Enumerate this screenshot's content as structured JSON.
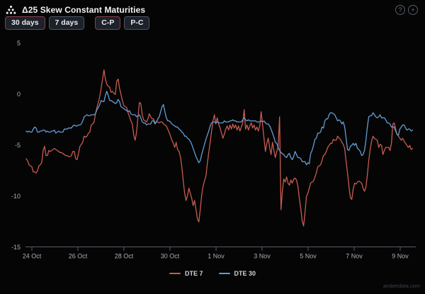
{
  "header": {
    "title": "Δ25 Skew Constant Maturities",
    "help_icon": "?",
    "add_icon": "+"
  },
  "toolbar": {
    "selected_border_color": "#8a4049",
    "default_border_color": "#4e5662",
    "buttons": [
      {
        "label": "30 days",
        "selected": true
      },
      {
        "label": "7 days",
        "selected": false
      },
      {
        "label": "C-P",
        "selected": true
      },
      {
        "label": "P-C",
        "selected": false
      }
    ]
  },
  "legend": [
    {
      "label": "DTE 7",
      "color": "#c75b50"
    },
    {
      "label": "DTE 30",
      "color": "#639dd4"
    }
  ],
  "watermark": "amberdata.com",
  "chart_data": {
    "type": "line",
    "title": "Δ25 Skew Constant Maturities",
    "xlabel": "",
    "ylabel": "",
    "grid": false,
    "legend_position": "bottom",
    "axis_color": "#565c66",
    "x_axis": {
      "unit": "days since 24 Oct",
      "tick_labels": [
        "24 Oct",
        "26 Oct",
        "28 Oct",
        "30 Oct",
        "1 Nov",
        "3 Nov",
        "5 Nov",
        "7 Nov",
        "9 Nov"
      ],
      "tick_days": [
        0,
        2,
        4,
        6,
        8,
        10,
        12,
        14,
        16
      ],
      "range_days": [
        -0.25,
        16.6
      ]
    },
    "y_axis": {
      "ticks": [
        5,
        0,
        -5,
        -10,
        -15
      ],
      "range": [
        -15,
        5
      ]
    },
    "series": [
      {
        "name": "DTE 7",
        "color": "#c75b50",
        "t_start": -0.25,
        "t_step": 0.0615,
        "values": [
          -6.3,
          -6.5,
          -6.9,
          -7.0,
          -7.1,
          -7.6,
          -7.6,
          -7.7,
          -7.5,
          -7.0,
          -6.9,
          -6.7,
          -5.5,
          -5.1,
          -6.0,
          -6.0,
          -5.5,
          -5.6,
          -5.5,
          -5.4,
          -5.3,
          -5.4,
          -5.5,
          -5.6,
          -5.7,
          -5.7,
          -5.8,
          -5.9,
          -6.0,
          -6.0,
          -6.1,
          -6.1,
          -6.0,
          -5.6,
          -5.6,
          -6.3,
          -6.4,
          -5.8,
          -5.1,
          -4.9,
          -4.7,
          -4.1,
          -4.2,
          -4.1,
          -3.8,
          -3.7,
          -3.0,
          -2.9,
          -2.7,
          -1.9,
          -1.3,
          -0.8,
          -0.2,
          0.6,
          1.5,
          2.4,
          1.5,
          1.0,
          0.8,
          0.7,
          0.2,
          0.3,
          0.1,
          0.0,
          1.3,
          1.5,
          0.6,
          0.0,
          -0.6,
          -1.1,
          -1.2,
          -1.3,
          -1.8,
          -2.2,
          -2.6,
          -2.9,
          -4.0,
          -4.5,
          -3.7,
          -2.2,
          -0.8,
          -0.9,
          -2.0,
          -2.5,
          -2.6,
          -2.7,
          -2.4,
          -1.9,
          -2.2,
          -2.4,
          -2.4,
          -2.8,
          -2.7,
          -2.7,
          -2.8,
          -2.7,
          -2.7,
          -2.9,
          -3.0,
          -3.1,
          -3.4,
          -3.7,
          -4.1,
          -4.5,
          -4.8,
          -5.2,
          -4.7,
          -5.4,
          -5.6,
          -6.1,
          -7.1,
          -8.5,
          -9.7,
          -10.4,
          -9.9,
          -9.2,
          -9.7,
          -10.2,
          -10.9,
          -10.4,
          -11.3,
          -12.2,
          -12.5,
          -11.3,
          -9.9,
          -9.0,
          -8.5,
          -8.0,
          -6.8,
          -5.7,
          -4.7,
          -3.6,
          -2.6,
          -2.0,
          -2.9,
          -2.3,
          -2.9,
          -3.3,
          -3.8,
          -4.3,
          -3.9,
          -3.4,
          -3.1,
          -3.5,
          -3.0,
          -3.4,
          -2.9,
          -3.3,
          -3.0,
          -3.5,
          -3.1,
          -3.6,
          -3.2,
          -2.8,
          -1.5,
          -3.4,
          -3.0,
          -3.5,
          -3.1,
          -2.8,
          -3.3,
          -3.0,
          -3.5,
          -3.2,
          -3.6,
          -3.1,
          -1.7,
          -3.0,
          -4.3,
          -5.6,
          -4.8,
          -4.3,
          -5.2,
          -5.9,
          -4.7,
          -5.5,
          -6.2,
          -5.6,
          -5.1,
          -2.2,
          -11.3,
          -9.5,
          -8.3,
          -8.6,
          -8.1,
          -8.7,
          -8.9,
          -8.4,
          -8.7,
          -8.3,
          -8.2,
          -8.4,
          -9.0,
          -10.2,
          -11.2,
          -12.4,
          -12.9,
          -11.6,
          -10.0,
          -9.7,
          -9.2,
          -8.7,
          -8.6,
          -8.5,
          -8.1,
          -7.7,
          -7.1,
          -7.0,
          -6.9,
          -6.5,
          -6.0,
          -5.9,
          -5.6,
          -5.2,
          -5.0,
          -4.8,
          -4.8,
          -4.4,
          -4.5,
          -4.5,
          -4.1,
          -4.3,
          -4.4,
          -4.7,
          -4.9,
          -5.3,
          -6.6,
          -7.7,
          -9.0,
          -10.1,
          -10.3,
          -9.3,
          -8.7,
          -8.8,
          -8.6,
          -8.5,
          -8.6,
          -8.7,
          -9.2,
          -9.5,
          -9.1,
          -7.9,
          -6.5,
          -5.4,
          -4.6,
          -4.1,
          -4.3,
          -4.4,
          -4.5,
          -5.2,
          -4.9,
          -5.0,
          -5.9,
          -5.5,
          -5.2,
          -5.2,
          -5.2,
          -5.5,
          -4.8,
          -2.9,
          -2.8,
          -3.4,
          -3.9,
          -4.1,
          -4.3,
          -4.5,
          -4.3,
          -4.6,
          -4.8,
          -5.0,
          -5.2,
          -5.0,
          -5.4,
          -5.3
        ]
      },
      {
        "name": "DTE 30",
        "color": "#639dd4",
        "t_start": -0.25,
        "t_step": 0.0615,
        "values": [
          -3.6,
          -3.7,
          -3.6,
          -3.7,
          -3.7,
          -3.4,
          -3.2,
          -3.3,
          -3.7,
          -3.7,
          -3.6,
          -3.6,
          -3.5,
          -3.5,
          -3.7,
          -3.6,
          -3.7,
          -3.7,
          -3.6,
          -3.6,
          -3.5,
          -3.8,
          -3.7,
          -3.6,
          -3.7,
          -3.7,
          -3.7,
          -3.4,
          -3.4,
          -3.4,
          -3.3,
          -3.3,
          -3.3,
          -3.1,
          -3.0,
          -3.1,
          -3.1,
          -3.0,
          -3.0,
          -2.9,
          -2.6,
          -2.2,
          -2.1,
          -2.0,
          -2.1,
          -2.1,
          -2.0,
          -2.0,
          -2.0,
          -1.9,
          -1.5,
          -1.3,
          -1.0,
          -0.6,
          -0.7,
          -0.7,
          -0.1,
          0.3,
          -0.1,
          -0.6,
          -0.6,
          -0.7,
          -0.8,
          -0.9,
          -0.8,
          -0.5,
          -0.7,
          -1.2,
          -1.3,
          -1.4,
          -1.5,
          -1.6,
          -1.7,
          -1.6,
          -1.9,
          -2.0,
          -2.0,
          -2.0,
          -2.2,
          -2.1,
          -2.0,
          -2.3,
          -2.7,
          -2.8,
          -2.8,
          -3.0,
          -2.9,
          -2.9,
          -2.9,
          -2.6,
          -2.6,
          -2.9,
          -2.7,
          -2.4,
          -2.2,
          -1.7,
          -1.2,
          -1.0,
          -1.7,
          -2.3,
          -2.6,
          -2.6,
          -2.7,
          -2.9,
          -3.0,
          -3.1,
          -3.2,
          -3.2,
          -3.4,
          -3.5,
          -3.7,
          -3.8,
          -4.1,
          -4.1,
          -4.3,
          -4.4,
          -4.6,
          -4.9,
          -5.3,
          -5.7,
          -6.1,
          -6.4,
          -6.7,
          -6.5,
          -5.9,
          -5.4,
          -4.9,
          -4.4,
          -4.0,
          -3.6,
          -3.1,
          -2.8,
          -2.7,
          -2.7,
          -2.8,
          -2.7,
          -2.8,
          -2.8,
          -2.8,
          -2.8,
          -2.6,
          -2.7,
          -2.7,
          -2.7,
          -2.6,
          -2.6,
          -2.5,
          -2.6,
          -2.6,
          -2.7,
          -2.7,
          -2.7,
          -2.7,
          -2.5,
          -2.3,
          -2.5,
          -2.6,
          -2.5,
          -2.6,
          -2.6,
          -2.6,
          -2.6,
          -2.6,
          -2.7,
          -2.7,
          -2.7,
          -2.6,
          -2.7,
          -2.6,
          -2.8,
          -2.9,
          -2.9,
          -3.1,
          -3.4,
          -3.8,
          -4.2,
          -4.7,
          -4.8,
          -5.2,
          -5.5,
          -5.7,
          -5.8,
          -5.9,
          -6.1,
          -6.2,
          -5.9,
          -5.8,
          -6.2,
          -6.4,
          -6.1,
          -5.6,
          -5.9,
          -6.2,
          -6.2,
          -6.3,
          -6.6,
          -6.6,
          -6.6,
          -6.9,
          -6.7,
          -6.8,
          -5.8,
          -5.5,
          -5.0,
          -4.4,
          -4.3,
          -3.8,
          -3.8,
          -3.7,
          -3.2,
          -3.3,
          -2.6,
          -2.4,
          -2.4,
          -2.0,
          -1.8,
          -1.8,
          -1.9,
          -2.0,
          -2.3,
          -2.6,
          -2.5,
          -2.6,
          -2.9,
          -2.7,
          -3.2,
          -4.3,
          -5.4,
          -5.5,
          -5.1,
          -5.0,
          -4.8,
          -5.0,
          -4.8,
          -5.3,
          -5.4,
          -5.6,
          -6.0,
          -5.9,
          -5.5,
          -4.5,
          -3.2,
          -2.2,
          -2.1,
          -2.1,
          -1.8,
          -2.0,
          -2.2,
          -2.3,
          -2.2,
          -2.0,
          -2.3,
          -2.3,
          -2.3,
          -2.5,
          -2.8,
          -2.8,
          -2.9,
          -3.2,
          -3.2,
          -3.2,
          -3.6,
          -3.9,
          -4.0,
          -3.4,
          -3.2,
          -3.0,
          -3.0,
          -3.3,
          -3.5,
          -3.4,
          -3.4,
          -3.6,
          -3.5
        ]
      }
    ]
  }
}
